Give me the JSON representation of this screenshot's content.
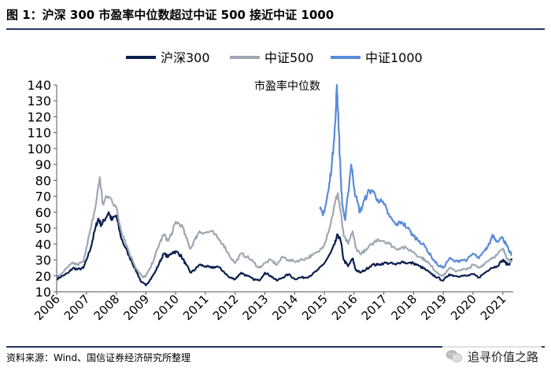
{
  "figure": {
    "title": "图  1：沪深 300 市盈率中位数超过中证 500 接近中证 1000",
    "source": "资料来源：Wind、国信证券经济研究所整理",
    "watermark": "追寻价值之路"
  },
  "chart_data": {
    "type": "line",
    "title": "市盈率中位数",
    "xlabel": "",
    "ylabel": "",
    "ylim": [
      10,
      140
    ],
    "yticks": [
      10,
      20,
      30,
      40,
      50,
      60,
      70,
      80,
      90,
      100,
      110,
      120,
      130,
      140
    ],
    "xlim": [
      2006,
      2021.35
    ],
    "xticks": [
      "2006",
      "2007",
      "2008",
      "2009",
      "2010",
      "2011",
      "2012",
      "2013",
      "2014",
      "2015",
      "2016",
      "2017",
      "2018",
      "2019",
      "2020",
      "2021"
    ],
    "legend_position": "top",
    "series": [
      {
        "name": "沪深300",
        "color": "#0b1f4f",
        "points": [
          [
            2006.0,
            18
          ],
          [
            2006.2,
            20
          ],
          [
            2006.4,
            22
          ],
          [
            2006.55,
            25
          ],
          [
            2006.7,
            24
          ],
          [
            2006.9,
            25
          ],
          [
            2007.0,
            30
          ],
          [
            2007.15,
            38
          ],
          [
            2007.3,
            50
          ],
          [
            2007.4,
            56
          ],
          [
            2007.5,
            52
          ],
          [
            2007.6,
            55
          ],
          [
            2007.75,
            60
          ],
          [
            2007.85,
            55
          ],
          [
            2008.0,
            58
          ],
          [
            2008.15,
            45
          ],
          [
            2008.3,
            38
          ],
          [
            2008.5,
            30
          ],
          [
            2008.7,
            22
          ],
          [
            2008.85,
            16
          ],
          [
            2009.0,
            14
          ],
          [
            2009.15,
            18
          ],
          [
            2009.3,
            22
          ],
          [
            2009.45,
            28
          ],
          [
            2009.6,
            34
          ],
          [
            2009.75,
            32
          ],
          [
            2009.9,
            35
          ],
          [
            2010.05,
            35
          ],
          [
            2010.2,
            32
          ],
          [
            2010.35,
            27
          ],
          [
            2010.5,
            22
          ],
          [
            2010.65,
            24
          ],
          [
            2010.8,
            27
          ],
          [
            2011.0,
            26
          ],
          [
            2011.2,
            25
          ],
          [
            2011.4,
            26
          ],
          [
            2011.6,
            23
          ],
          [
            2011.8,
            19
          ],
          [
            2012.0,
            18
          ],
          [
            2012.2,
            22
          ],
          [
            2012.4,
            20
          ],
          [
            2012.6,
            18
          ],
          [
            2012.8,
            17
          ],
          [
            2013.0,
            22
          ],
          [
            2013.2,
            20
          ],
          [
            2013.4,
            17
          ],
          [
            2013.6,
            19
          ],
          [
            2013.8,
            21
          ],
          [
            2014.0,
            18
          ],
          [
            2014.2,
            19
          ],
          [
            2014.4,
            19
          ],
          [
            2014.6,
            21
          ],
          [
            2014.8,
            24
          ],
          [
            2015.0,
            28
          ],
          [
            2015.2,
            34
          ],
          [
            2015.35,
            40
          ],
          [
            2015.45,
            46
          ],
          [
            2015.55,
            42
          ],
          [
            2015.65,
            30
          ],
          [
            2015.8,
            26
          ],
          [
            2015.95,
            31
          ],
          [
            2016.05,
            24
          ],
          [
            2016.2,
            22
          ],
          [
            2016.4,
            24
          ],
          [
            2016.6,
            27
          ],
          [
            2016.8,
            27
          ],
          [
            2017.0,
            28
          ],
          [
            2017.2,
            28
          ],
          [
            2017.4,
            27
          ],
          [
            2017.6,
            29
          ],
          [
            2017.8,
            28
          ],
          [
            2018.0,
            28
          ],
          [
            2018.2,
            26
          ],
          [
            2018.4,
            24
          ],
          [
            2018.6,
            21
          ],
          [
            2018.8,
            19
          ],
          [
            2019.0,
            17
          ],
          [
            2019.2,
            21
          ],
          [
            2019.4,
            20
          ],
          [
            2019.6,
            20
          ],
          [
            2019.8,
            20
          ],
          [
            2020.0,
            21
          ],
          [
            2020.2,
            19
          ],
          [
            2020.4,
            22
          ],
          [
            2020.6,
            25
          ],
          [
            2020.8,
            26
          ],
          [
            2021.0,
            30
          ],
          [
            2021.1,
            28
          ],
          [
            2021.2,
            27
          ],
          [
            2021.3,
            31
          ]
        ]
      },
      {
        "name": "中证500",
        "color": "#9fa8b3",
        "points": [
          [
            2006.0,
            19
          ],
          [
            2006.2,
            22
          ],
          [
            2006.4,
            26
          ],
          [
            2006.55,
            28
          ],
          [
            2006.7,
            27
          ],
          [
            2006.9,
            29
          ],
          [
            2007.0,
            38
          ],
          [
            2007.15,
            50
          ],
          [
            2007.3,
            63
          ],
          [
            2007.45,
            82
          ],
          [
            2007.55,
            65
          ],
          [
            2007.7,
            70
          ],
          [
            2007.85,
            68
          ],
          [
            2008.0,
            63
          ],
          [
            2008.15,
            50
          ],
          [
            2008.3,
            42
          ],
          [
            2008.5,
            32
          ],
          [
            2008.7,
            24
          ],
          [
            2008.9,
            19
          ],
          [
            2009.0,
            20
          ],
          [
            2009.15,
            25
          ],
          [
            2009.3,
            32
          ],
          [
            2009.45,
            40
          ],
          [
            2009.6,
            46
          ],
          [
            2009.75,
            42
          ],
          [
            2009.9,
            48
          ],
          [
            2010.0,
            54
          ],
          [
            2010.2,
            52
          ],
          [
            2010.35,
            44
          ],
          [
            2010.5,
            37
          ],
          [
            2010.65,
            43
          ],
          [
            2010.8,
            48
          ],
          [
            2011.0,
            47
          ],
          [
            2011.2,
            48
          ],
          [
            2011.4,
            44
          ],
          [
            2011.6,
            40
          ],
          [
            2011.8,
            33
          ],
          [
            2012.0,
            28
          ],
          [
            2012.2,
            34
          ],
          [
            2012.4,
            32
          ],
          [
            2012.6,
            29
          ],
          [
            2012.8,
            25
          ],
          [
            2013.0,
            28
          ],
          [
            2013.2,
            30
          ],
          [
            2013.4,
            27
          ],
          [
            2013.6,
            32
          ],
          [
            2013.8,
            30
          ],
          [
            2014.0,
            29
          ],
          [
            2014.2,
            30
          ],
          [
            2014.4,
            31
          ],
          [
            2014.6,
            33
          ],
          [
            2014.8,
            35
          ],
          [
            2015.0,
            40
          ],
          [
            2015.2,
            52
          ],
          [
            2015.35,
            65
          ],
          [
            2015.45,
            72
          ],
          [
            2015.55,
            60
          ],
          [
            2015.65,
            45
          ],
          [
            2015.8,
            40
          ],
          [
            2015.95,
            48
          ],
          [
            2016.05,
            38
          ],
          [
            2016.2,
            34
          ],
          [
            2016.4,
            36
          ],
          [
            2016.6,
            40
          ],
          [
            2016.8,
            43
          ],
          [
            2017.0,
            42
          ],
          [
            2017.2,
            40
          ],
          [
            2017.4,
            37
          ],
          [
            2017.6,
            38
          ],
          [
            2017.8,
            37
          ],
          [
            2018.0,
            35
          ],
          [
            2018.2,
            32
          ],
          [
            2018.4,
            30
          ],
          [
            2018.6,
            26
          ],
          [
            2018.8,
            22
          ],
          [
            2019.0,
            20
          ],
          [
            2019.2,
            25
          ],
          [
            2019.4,
            23
          ],
          [
            2019.6,
            24
          ],
          [
            2019.8,
            24
          ],
          [
            2020.0,
            27
          ],
          [
            2020.2,
            25
          ],
          [
            2020.4,
            28
          ],
          [
            2020.6,
            31
          ],
          [
            2020.8,
            33
          ],
          [
            2021.0,
            37
          ],
          [
            2021.1,
            33
          ],
          [
            2021.2,
            30
          ],
          [
            2021.3,
            29
          ]
        ]
      },
      {
        "name": "中证1000",
        "color": "#5b8bd6",
        "points": [
          [
            2014.85,
            62
          ],
          [
            2014.95,
            58
          ],
          [
            2015.05,
            65
          ],
          [
            2015.15,
            75
          ],
          [
            2015.25,
            90
          ],
          [
            2015.32,
            105
          ],
          [
            2015.38,
            120
          ],
          [
            2015.42,
            140
          ],
          [
            2015.46,
            125
          ],
          [
            2015.52,
            95
          ],
          [
            2015.6,
            65
          ],
          [
            2015.7,
            55
          ],
          [
            2015.8,
            72
          ],
          [
            2015.9,
            90
          ],
          [
            2015.95,
            84
          ],
          [
            2016.05,
            70
          ],
          [
            2016.2,
            60
          ],
          [
            2016.3,
            65
          ],
          [
            2016.45,
            72
          ],
          [
            2016.6,
            74
          ],
          [
            2016.8,
            68
          ],
          [
            2017.0,
            65
          ],
          [
            2017.2,
            57
          ],
          [
            2017.4,
            52
          ],
          [
            2017.6,
            54
          ],
          [
            2017.8,
            50
          ],
          [
            2018.0,
            45
          ],
          [
            2018.2,
            42
          ],
          [
            2018.4,
            38
          ],
          [
            2018.6,
            32
          ],
          [
            2018.8,
            27
          ],
          [
            2019.0,
            25
          ],
          [
            2019.2,
            31
          ],
          [
            2019.4,
            29
          ],
          [
            2019.6,
            30
          ],
          [
            2019.8,
            30
          ],
          [
            2020.0,
            34
          ],
          [
            2020.2,
            31
          ],
          [
            2020.4,
            36
          ],
          [
            2020.55,
            40
          ],
          [
            2020.65,
            46
          ],
          [
            2020.8,
            42
          ],
          [
            2021.0,
            44
          ],
          [
            2021.1,
            40
          ],
          [
            2021.2,
            36
          ],
          [
            2021.3,
            33
          ]
        ]
      }
    ]
  }
}
